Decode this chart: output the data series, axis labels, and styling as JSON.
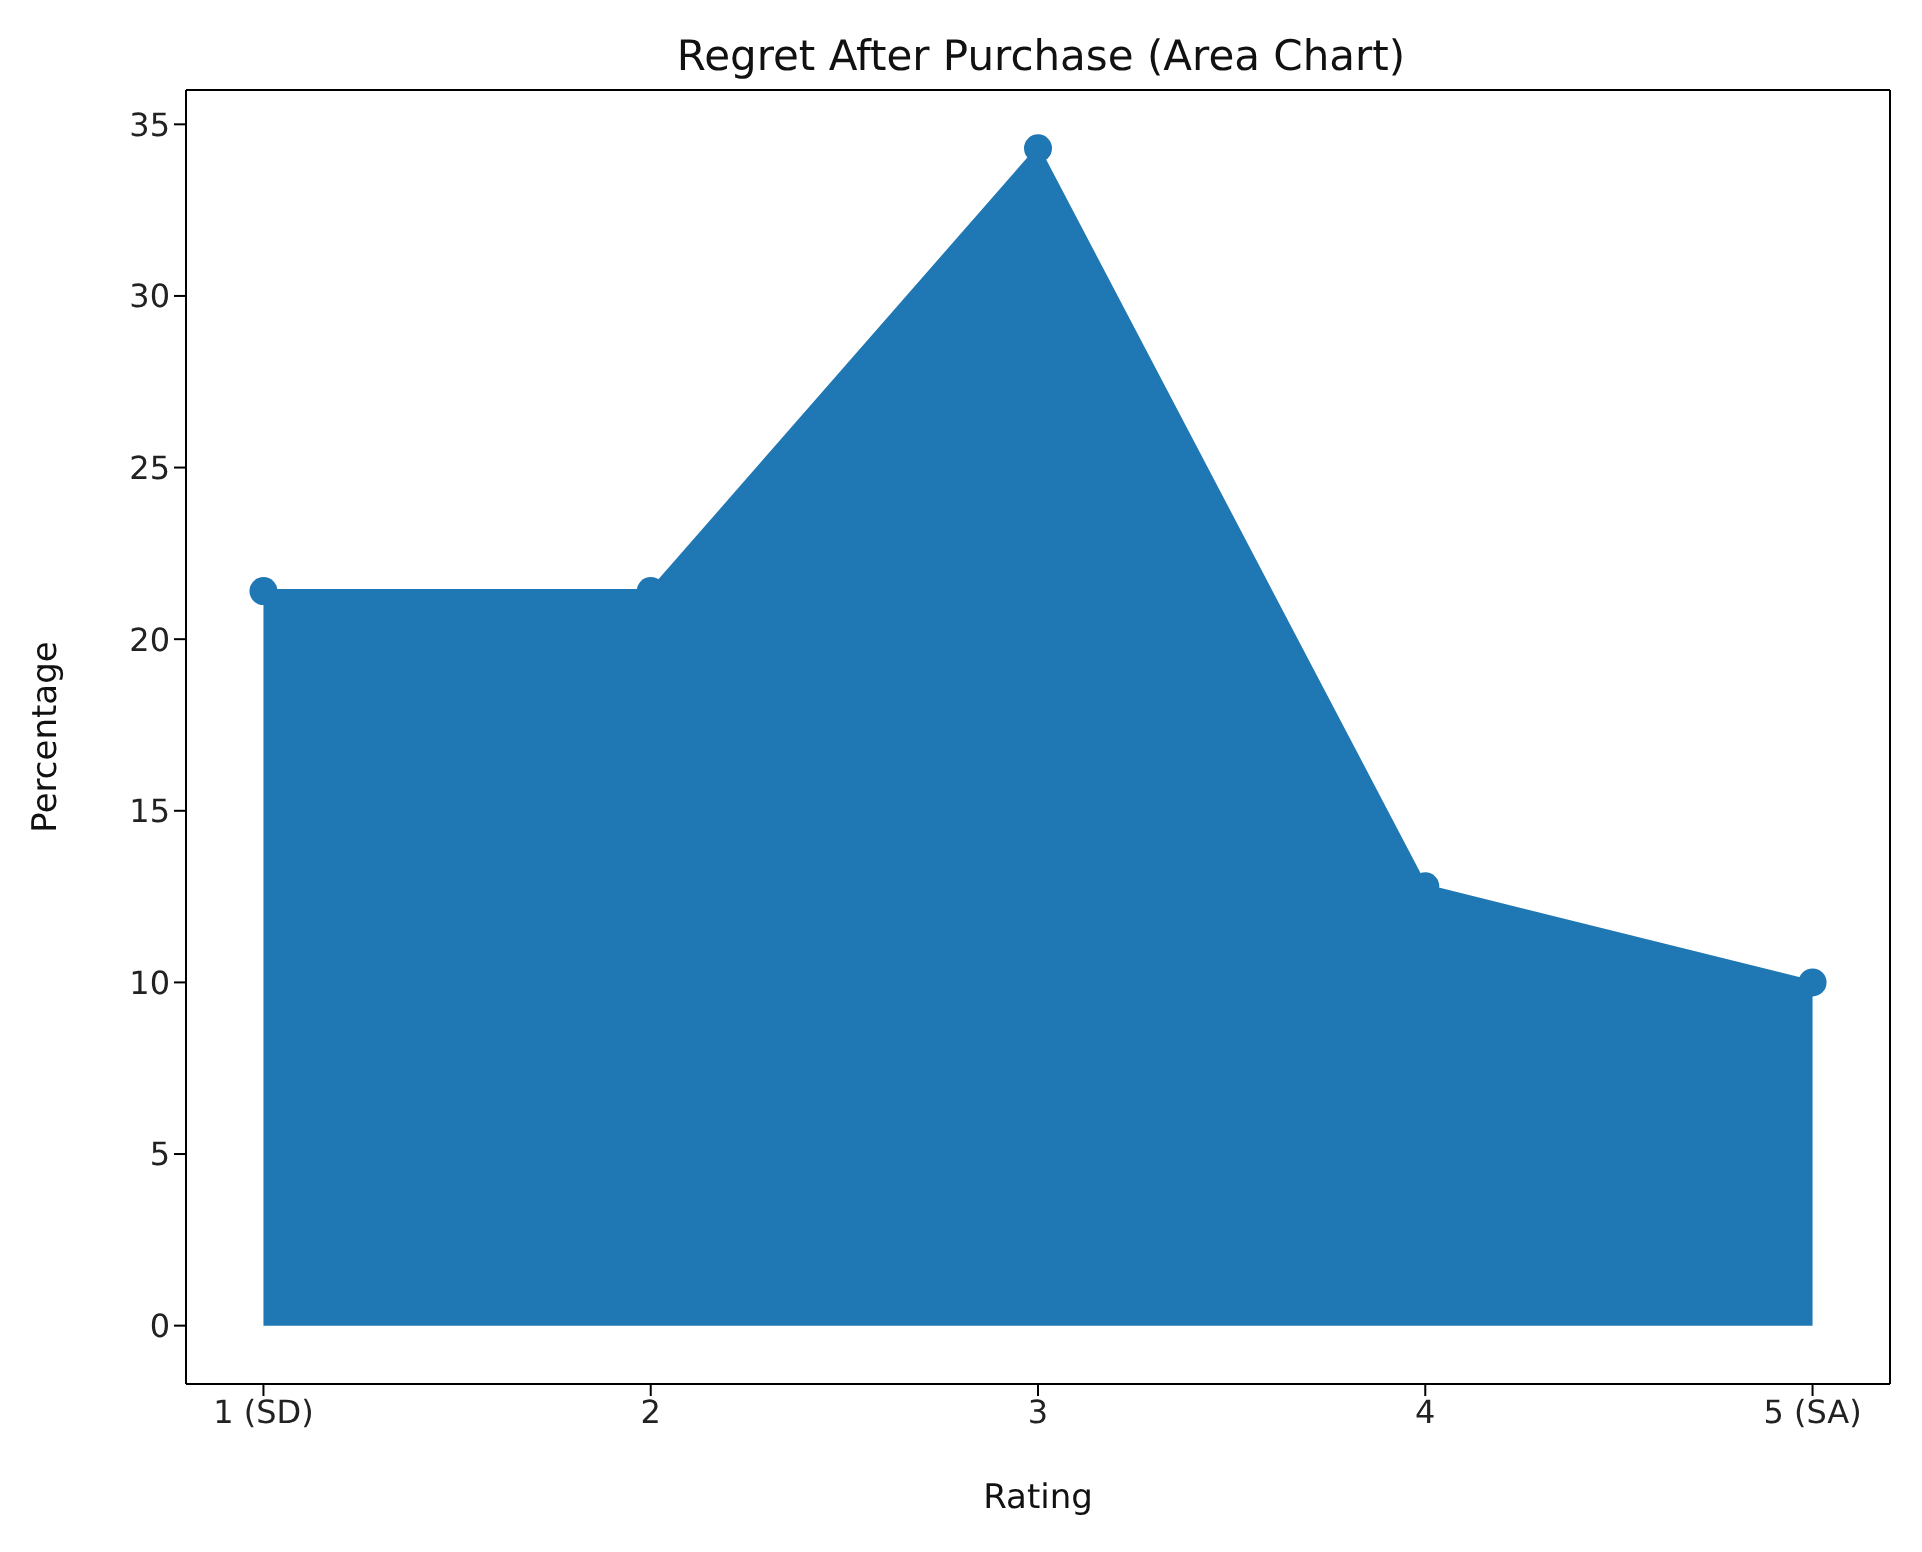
{
  "chart_data": {
    "type": "area",
    "title": "Regret After Purchase (Area Chart)",
    "xlabel": "Rating",
    "ylabel": "Percentage",
    "categories": [
      "1 (SD)",
      "2",
      "3",
      "4",
      "5 (SA)"
    ],
    "series": [
      {
        "color": "#1f77b4",
        "values": [
          21.4,
          21.4,
          34.3,
          12.8,
          10.0
        ]
      }
    ],
    "ylim": [
      -1.7,
      36
    ],
    "yticks": [
      0,
      5,
      10,
      15,
      20,
      25,
      30,
      35
    ],
    "marker": "circle",
    "grid": false
  }
}
